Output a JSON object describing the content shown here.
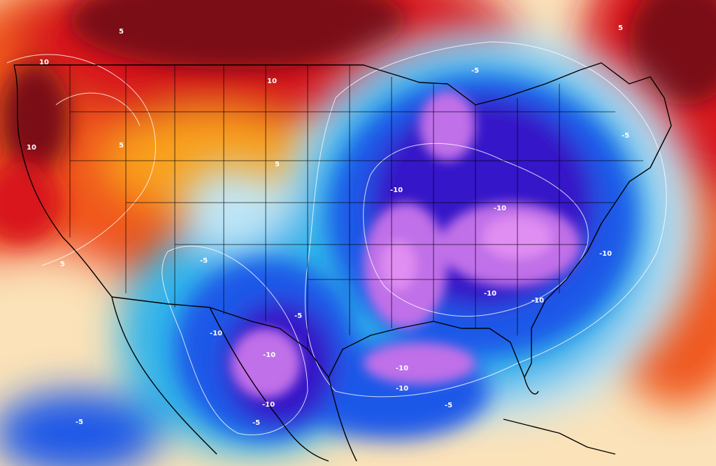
{
  "map": {
    "type": "temperature anomaly contour map",
    "region": "North America",
    "palette": {
      "warm_extreme": "#7a0a12",
      "warm_high": "#d8141c",
      "warm_mid": "#f0561c",
      "warm_low": "#f9a11f",
      "warm_faint": "#fbe2b8",
      "neutral": "#ffffff",
      "cool_faint": "#bfe6f7",
      "cool_low": "#2fb3ea",
      "cool_mid": "#1a58e8",
      "cool_high": "#3414c8",
      "cold_extreme": "#c070e8",
      "cold_core": "#e18ef2",
      "state_borders": "#000000",
      "contour_lines": "#ffffff"
    },
    "contour_labels": [
      {
        "text": "5"
      },
      {
        "text": "10"
      },
      {
        "text": "10"
      },
      {
        "text": "10"
      },
      {
        "text": "5"
      },
      {
        "text": "5"
      },
      {
        "text": "5"
      },
      {
        "text": "5"
      },
      {
        "text": "-5"
      },
      {
        "text": "-5"
      },
      {
        "text": "-10"
      },
      {
        "text": "-10"
      },
      {
        "text": "-10"
      },
      {
        "text": "-10"
      },
      {
        "text": "-10"
      },
      {
        "text": "-5"
      },
      {
        "text": "-5"
      },
      {
        "text": "-10"
      },
      {
        "text": "-10"
      },
      {
        "text": "-10"
      },
      {
        "text": "-10"
      },
      {
        "text": "-5"
      },
      {
        "text": "-5"
      },
      {
        "text": "-10"
      },
      {
        "text": "-5"
      }
    ]
  }
}
